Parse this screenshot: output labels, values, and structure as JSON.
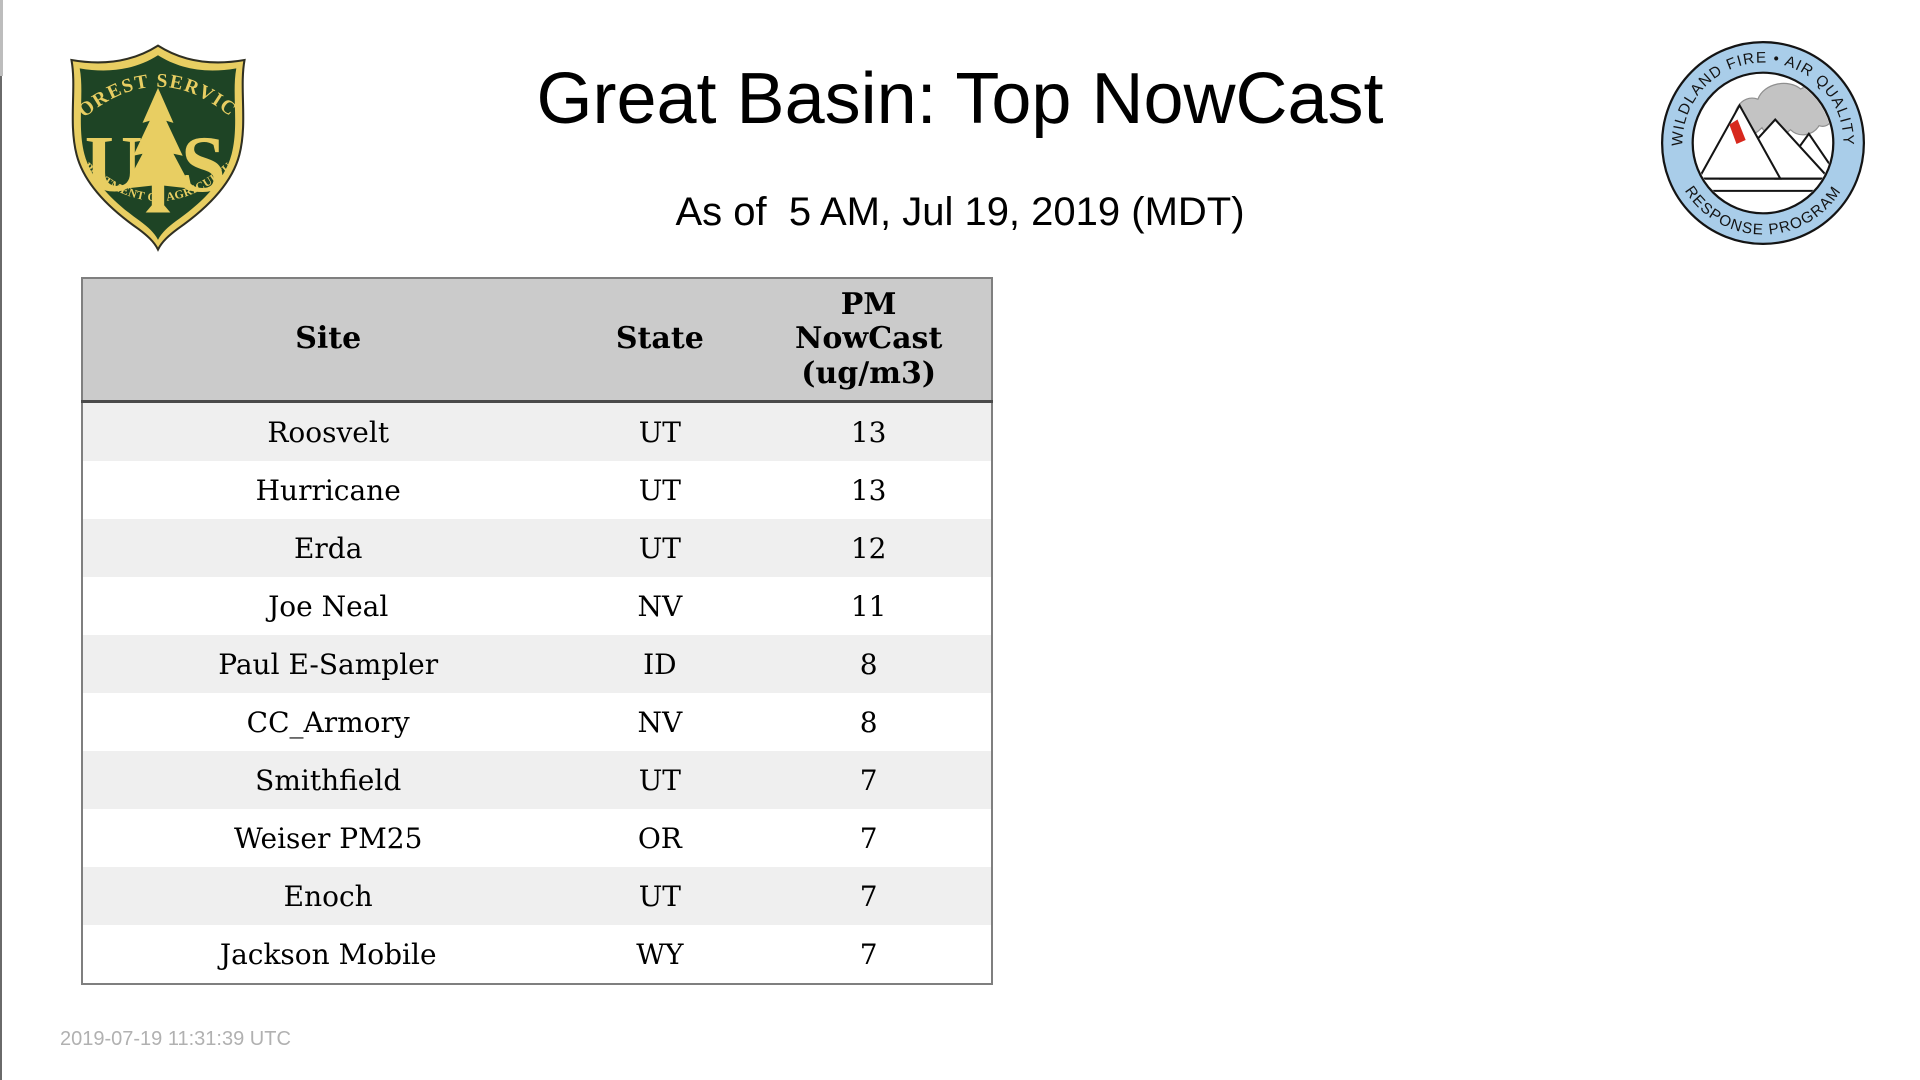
{
  "page": {
    "title": "Great Basin: Top NowCast",
    "subtitle": "As of  5 AM, Jul 19, 2019 (MDT)",
    "footer_timestamp": "2019-07-19 11:31:39 UTC"
  },
  "logos": {
    "forest_service": {
      "arc_top": "FOREST SERVICE",
      "letter_left": "U",
      "letter_right": "S",
      "arc_bottom": "DEPARTMENT OF AGRICULTURE",
      "colors": {
        "field_green": "#1e4425",
        "gold": "#e8ce62",
        "outline": "#2f2f22"
      }
    },
    "air_quality_program": {
      "arc_top": "WILDLAND FIRE • AIR QUALITY",
      "arc_bottom": "RESPONSE PROGRAM",
      "colors": {
        "ring_blue": "#a9cde9",
        "smoke_gray": "#c3c3c3",
        "flame_red": "#d7281d",
        "line_black": "#141414"
      }
    }
  },
  "table": {
    "columns": [
      {
        "label": "Site"
      },
      {
        "label": "State"
      },
      {
        "label": "PM\nNowCast\n(ug/m3)"
      }
    ],
    "rows": [
      {
        "site": "Roosvelt",
        "state": "UT",
        "value": "13"
      },
      {
        "site": "Hurricane",
        "state": "UT",
        "value": "13"
      },
      {
        "site": "Erda",
        "state": "UT",
        "value": "12"
      },
      {
        "site": "Joe Neal",
        "state": "NV",
        "value": "11"
      },
      {
        "site": "Paul E-Sampler",
        "state": "ID",
        "value": "8"
      },
      {
        "site": "CC_Armory",
        "state": "NV",
        "value": "8"
      },
      {
        "site": "Smithfield",
        "state": "UT",
        "value": "7"
      },
      {
        "site": "Weiser PM25",
        "state": "OR",
        "value": "7"
      },
      {
        "site": "Enoch",
        "state": "UT",
        "value": "7"
      },
      {
        "site": "Jackson Mobile",
        "state": "WY",
        "value": "7"
      }
    ],
    "colors": {
      "header_bg": "#cbcbcb",
      "row_odd": "#efefef",
      "row_even": "#ffffff",
      "border_outer": "#7f7f7f",
      "border_header": "#4a4a4a"
    }
  }
}
